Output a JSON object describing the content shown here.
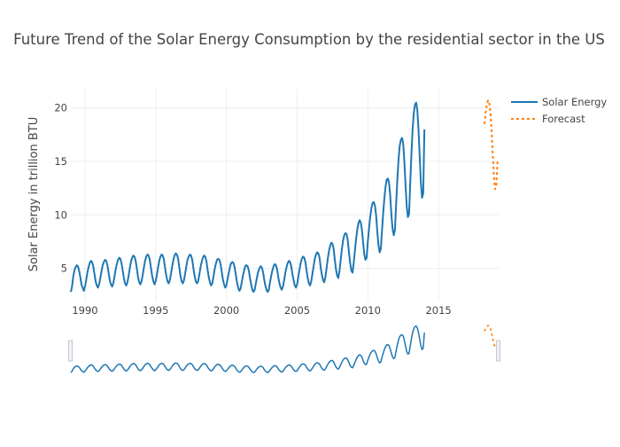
{
  "chart_data": {
    "type": "line",
    "title": "Future Trend of the Solar Energy Consumption by the residential sector in the US",
    "xlabel": "",
    "ylabel": "Solar Energy in trillion BTU",
    "x_ticks": [
      "1990",
      "1995",
      "2000",
      "2005",
      "2010",
      "2015"
    ],
    "y_ticks": [
      "5",
      "10",
      "15",
      "20"
    ],
    "xlim": [
      1989.0,
      2019.25
    ],
    "ylim": [
      1.9,
      21.8
    ],
    "grid": true,
    "legend_position": "top-right",
    "range_slider": true,
    "series": [
      {
        "name": "Solar Energy",
        "color": "#1f77b4",
        "dash": "solid",
        "x_start": 1989.0,
        "step": 0.08333,
        "values": [
          2.8,
          3.3,
          4.2,
          4.8,
          5.1,
          5.3,
          5.2,
          4.8,
          4.2,
          3.5,
          3.2,
          2.9,
          3.3,
          3.9,
          4.6,
          5.1,
          5.5,
          5.7,
          5.6,
          5.2,
          4.5,
          3.8,
          3.4,
          3.2,
          3.5,
          4.1,
          4.7,
          5.3,
          5.6,
          5.8,
          5.7,
          5.3,
          4.6,
          3.9,
          3.5,
          3.3,
          3.6,
          4.2,
          4.9,
          5.4,
          5.8,
          6.0,
          5.9,
          5.5,
          4.8,
          4.1,
          3.6,
          3.4,
          3.7,
          4.3,
          5.0,
          5.6,
          6.0,
          6.2,
          6.1,
          5.7,
          5.0,
          4.2,
          3.7,
          3.5,
          3.8,
          4.4,
          5.1,
          5.7,
          6.1,
          6.3,
          6.2,
          5.8,
          5.0,
          4.3,
          3.8,
          3.5,
          3.8,
          4.4,
          5.1,
          5.7,
          6.1,
          6.3,
          6.2,
          5.8,
          5.0,
          4.3,
          3.8,
          3.6,
          3.9,
          4.5,
          5.2,
          5.8,
          6.2,
          6.4,
          6.3,
          5.9,
          5.1,
          4.3,
          3.8,
          3.6,
          3.9,
          4.5,
          5.2,
          5.8,
          6.1,
          6.3,
          6.2,
          5.8,
          5.0,
          4.3,
          3.8,
          3.6,
          3.8,
          4.4,
          5.1,
          5.6,
          6.0,
          6.2,
          6.1,
          5.7,
          4.9,
          4.2,
          3.7,
          3.4,
          3.6,
          4.2,
          4.9,
          5.4,
          5.8,
          5.9,
          5.8,
          5.4,
          4.7,
          4.0,
          3.5,
          3.2,
          3.4,
          4.0,
          4.6,
          5.1,
          5.5,
          5.6,
          5.5,
          5.1,
          4.4,
          3.7,
          3.2,
          2.9,
          3.1,
          3.7,
          4.3,
          4.8,
          5.2,
          5.3,
          5.2,
          4.8,
          4.1,
          3.5,
          3.0,
          2.8,
          3.0,
          3.6,
          4.2,
          4.7,
          5.0,
          5.2,
          5.1,
          4.7,
          4.0,
          3.4,
          3.0,
          2.8,
          3.0,
          3.7,
          4.3,
          4.8,
          5.2,
          5.4,
          5.3,
          4.9,
          4.2,
          3.6,
          3.2,
          3.0,
          3.3,
          3.9,
          4.6,
          5.1,
          5.5,
          5.7,
          5.6,
          5.2,
          4.5,
          3.9,
          3.4,
          3.2,
          3.5,
          4.2,
          4.9,
          5.5,
          5.9,
          6.1,
          6.0,
          5.6,
          4.8,
          4.1,
          3.6,
          3.4,
          3.8,
          4.5,
          5.2,
          5.9,
          6.3,
          6.5,
          6.4,
          6.0,
          5.1,
          4.4,
          3.9,
          3.7,
          4.2,
          5.0,
          5.9,
          6.6,
          7.1,
          7.4,
          7.3,
          6.8,
          5.8,
          4.9,
          4.3,
          4.1,
          4.8,
          5.8,
          6.8,
          7.6,
          8.1,
          8.3,
          8.2,
          7.6,
          6.5,
          5.5,
          4.8,
          4.6,
          5.5,
          6.6,
          7.7,
          8.6,
          9.2,
          9.5,
          9.3,
          8.6,
          7.4,
          6.3,
          5.8,
          6.0,
          7.5,
          8.7,
          9.8,
          10.6,
          11.1,
          11.2,
          10.9,
          10.0,
          8.5,
          7.2,
          6.5,
          6.8,
          8.5,
          10.1,
          11.5,
          12.6,
          13.3,
          13.4,
          13.0,
          11.8,
          10.0,
          8.7,
          8.1,
          8.6,
          11.0,
          13.2,
          15.1,
          16.4,
          17.0,
          17.2,
          16.7,
          15.0,
          12.8,
          10.8,
          9.8,
          10.1,
          13.0,
          15.7,
          18.0,
          19.5,
          20.3,
          20.5,
          19.8,
          18.0,
          15.5,
          13.0,
          11.6,
          12.0,
          18.0
        ]
      },
      {
        "name": "Forecast",
        "color": "#ff7f0e",
        "dash": "dot",
        "x_start": 2018.25,
        "step": 0.08333,
        "values": [
          18.5,
          19.6,
          20.3,
          20.7,
          20.5,
          19.6,
          17.9,
          15.6,
          13.6,
          12.4,
          12.8,
          15.0
        ]
      }
    ]
  }
}
